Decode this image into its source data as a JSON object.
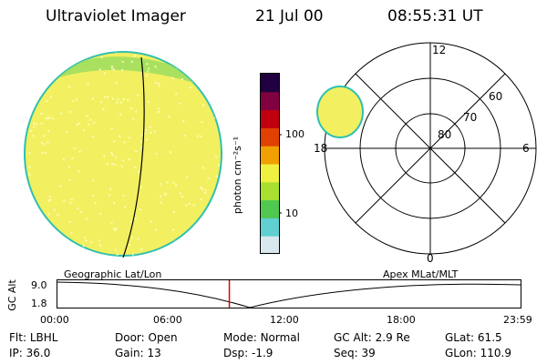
{
  "header": {
    "title": "Ultraviolet Imager",
    "date": "21 Jul 00",
    "time": "08:55:31 UT"
  },
  "colorbar": {
    "label": "photon cm⁻²s⁻¹",
    "ticks": [
      "100",
      "10"
    ]
  },
  "polar": {
    "mlt_labels": {
      "top": "12",
      "left": "18",
      "right": "6",
      "bottom": "0"
    },
    "lat_labels": [
      "60",
      "70",
      "80"
    ]
  },
  "timeline": {
    "left_label": "Geographic Lat/Lon",
    "right_label": "Apex MLat/MLT",
    "yaxis_label": "GC Alt",
    "ymax": "9.0",
    "ymin": "1.8",
    "hours": [
      "00:00",
      "06:00",
      "12:00",
      "18:00",
      "23:59"
    ],
    "current_time_hours": 8.92
  },
  "footer": {
    "row1": [
      {
        "key": "Flt:",
        "val": "LBHL"
      },
      {
        "key": "Door:",
        "val": "Open"
      },
      {
        "key": "Mode:",
        "val": "Normal"
      },
      {
        "key": "GC Alt:",
        "val": "2.9 Re"
      },
      {
        "key": "GLat:",
        "val": "61.5"
      }
    ],
    "row2": [
      {
        "key": "IP:",
        "val": "36.0"
      },
      {
        "key": "Gain:",
        "val": "13"
      },
      {
        "key": "Dsp:",
        "val": "-1.9"
      },
      {
        "key": "Seq:",
        "val": "39"
      },
      {
        "key": "GLon:",
        "val": "110.9"
      }
    ]
  },
  "colors": {
    "image_fill": "#f2f060",
    "colorbar": [
      "#d8e8ee",
      "#60d0d0",
      "#50c850",
      "#a8e030",
      "#f0f040",
      "#f0a000",
      "#e04000",
      "#c00010",
      "#800040",
      "#200040"
    ],
    "time_marker": "#e00000"
  }
}
